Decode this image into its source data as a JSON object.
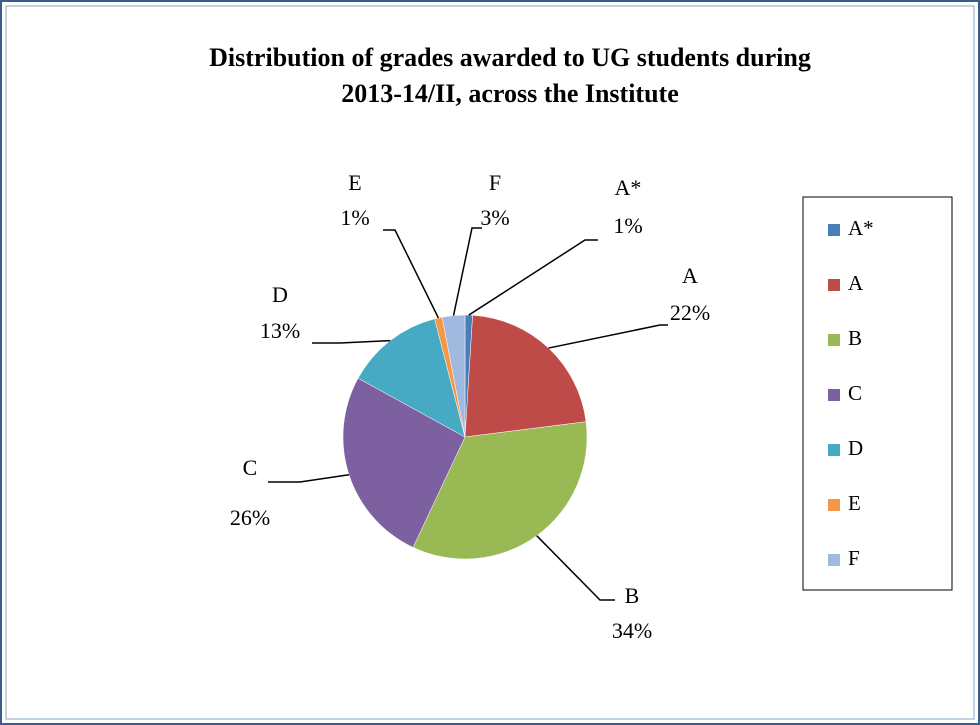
{
  "chart_data": {
    "type": "pie",
    "title": [
      "Distribution of grades awarded to UG students during",
      "2013-14/II, across the Institute"
    ],
    "categories": [
      "A*",
      "A",
      "B",
      "C",
      "D",
      "E",
      "F"
    ],
    "values": [
      1,
      22,
      34,
      26,
      13,
      1,
      3
    ],
    "value_labels": [
      "1%",
      "22%",
      "34%",
      "26%",
      "13%",
      "1%",
      "3%"
    ],
    "colors": [
      "#4a7ebb",
      "#be4b48",
      "#98b954",
      "#7d60a0",
      "#46aac5",
      "#f79646",
      "#a0b9de"
    ],
    "legend": "right"
  }
}
